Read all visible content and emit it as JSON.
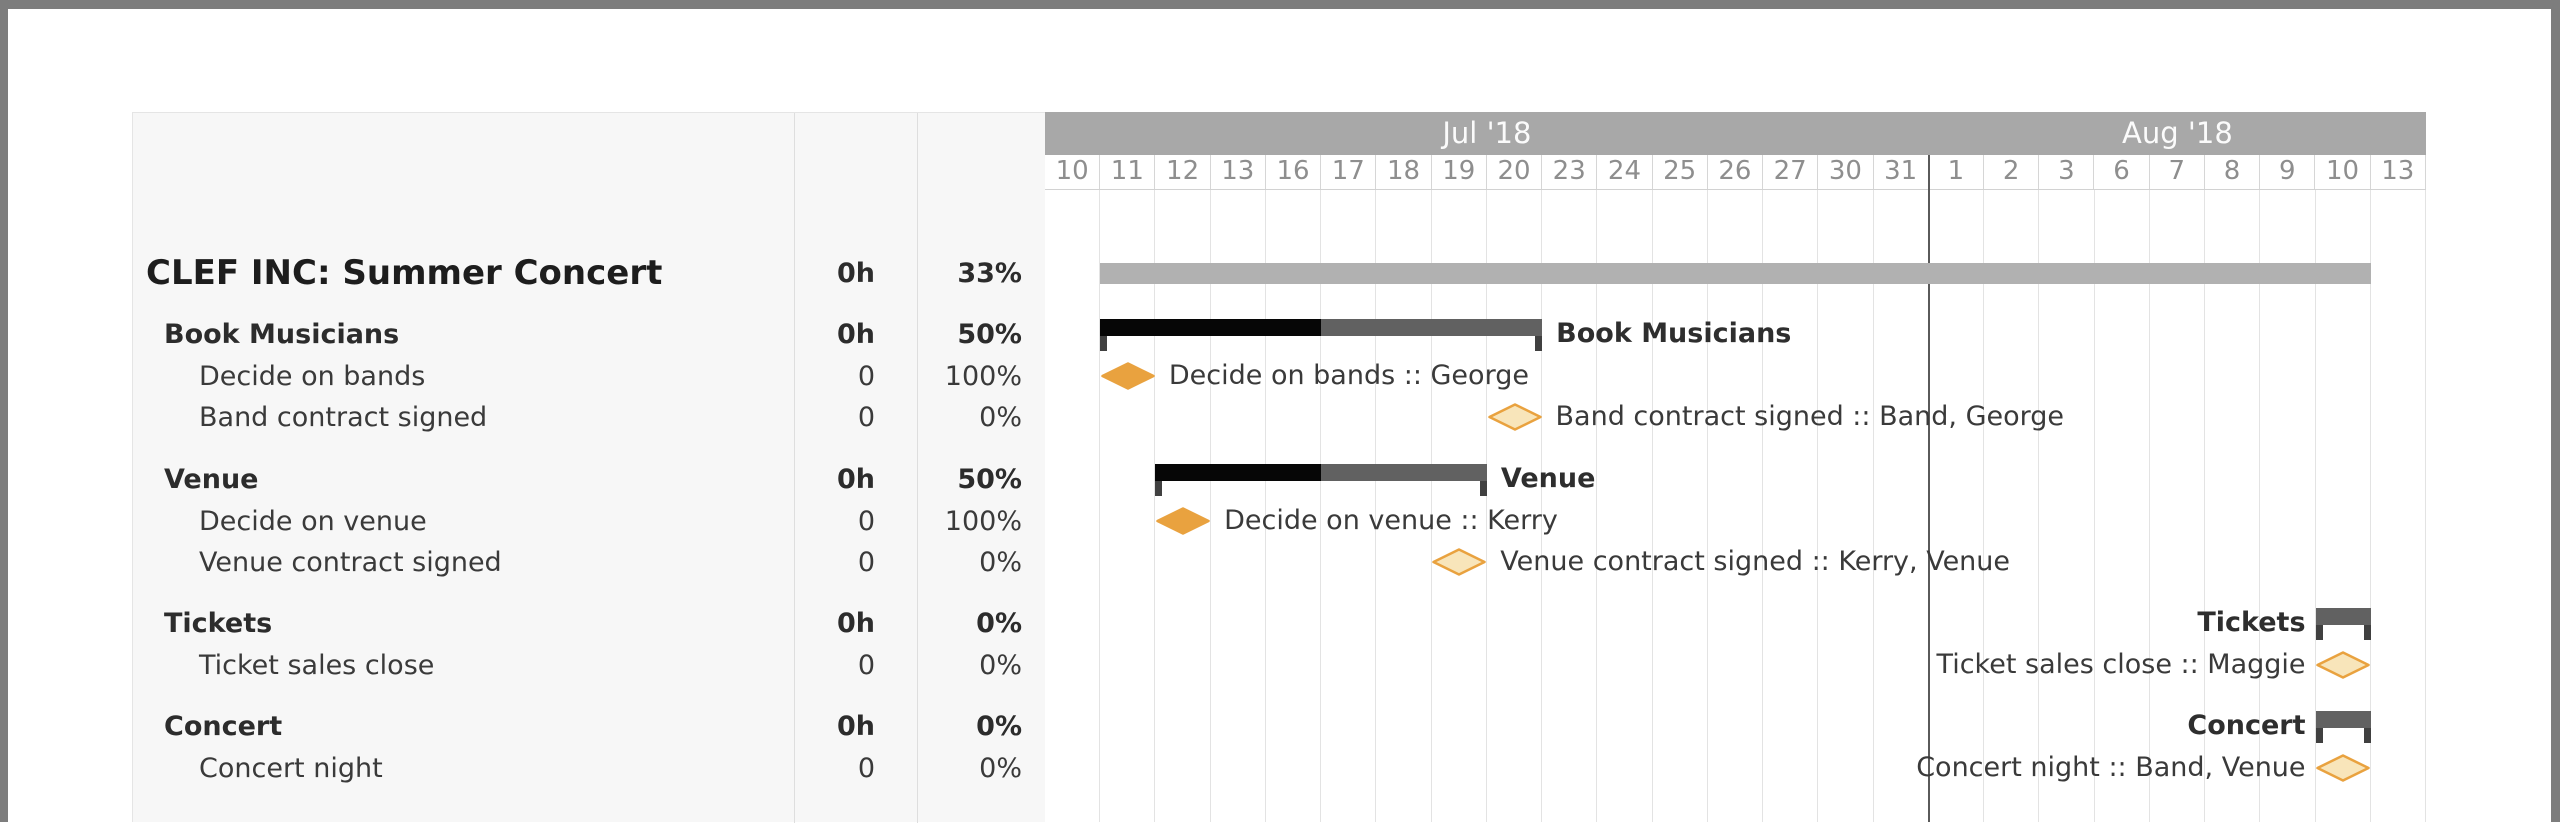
{
  "timeline": {
    "months": [
      {
        "label": "Jul '18",
        "days": 16
      },
      {
        "label": "Aug '18",
        "days": 9
      }
    ],
    "days": [
      "10",
      "11",
      "12",
      "13",
      "16",
      "17",
      "18",
      "19",
      "20",
      "23",
      "24",
      "25",
      "26",
      "27",
      "30",
      "31",
      "1",
      "2",
      "3",
      "6",
      "7",
      "8",
      "9",
      "10",
      "13"
    ]
  },
  "rows": [
    {
      "type": "project",
      "name": "CLEF INC: Summer Concert",
      "hours": "0h",
      "percent": "33%",
      "bar": {
        "kind": "project",
        "startCol": 1,
        "spanCols": 23,
        "start_date": "Jul 11",
        "end_date": "Aug 10"
      }
    },
    {
      "type": "group",
      "name": "Book Musicians",
      "hours": "0h",
      "percent": "50%",
      "bar": {
        "kind": "summary",
        "startCol": 1,
        "spanCols": 8,
        "progress": 0.5,
        "label": "Book Musicians",
        "labelSide": "right",
        "start_date": "Jul 11",
        "end_date": "Jul 20"
      }
    },
    {
      "type": "task",
      "name": "Decide on bands",
      "hours": "0",
      "percent": "100%",
      "bar": {
        "kind": "milestone",
        "col": 1,
        "filled": true,
        "label": "Decide on bands :: George",
        "labelSide": "right",
        "date": "Jul 11"
      }
    },
    {
      "type": "task",
      "name": "Band contract signed",
      "hours": "0",
      "percent": "0%",
      "bar": {
        "kind": "milestone",
        "col": 8,
        "filled": false,
        "label": "Band contract signed :: Band, George",
        "labelSide": "right",
        "date": "Jul 20"
      }
    },
    {
      "type": "group",
      "name": "Venue",
      "hours": "0h",
      "percent": "50%",
      "bar": {
        "kind": "summary",
        "startCol": 2,
        "spanCols": 6,
        "progress": 0.5,
        "label": "Venue",
        "labelSide": "right",
        "start_date": "Jul 12",
        "end_date": "Jul 19"
      }
    },
    {
      "type": "task",
      "name": "Decide on venue",
      "hours": "0",
      "percent": "100%",
      "bar": {
        "kind": "milestone",
        "col": 2,
        "filled": true,
        "label": "Decide on venue :: Kerry",
        "labelSide": "right",
        "date": "Jul 12"
      }
    },
    {
      "type": "task",
      "name": "Venue contract signed",
      "hours": "0",
      "percent": "0%",
      "bar": {
        "kind": "milestone",
        "col": 7,
        "filled": false,
        "label": "Venue contract signed :: Kerry, Venue",
        "labelSide": "right",
        "date": "Jul 19"
      }
    },
    {
      "type": "group",
      "name": "Tickets",
      "hours": "0h",
      "percent": "0%",
      "bar": {
        "kind": "summary",
        "startCol": 23,
        "spanCols": 1,
        "progress": 0,
        "label": "Tickets",
        "labelSide": "left",
        "start_date": "Aug 10",
        "end_date": "Aug 10"
      }
    },
    {
      "type": "task",
      "name": "Ticket sales close",
      "hours": "0",
      "percent": "0%",
      "bar": {
        "kind": "milestone",
        "col": 23,
        "filled": false,
        "label": "Ticket sales close :: Maggie",
        "labelSide": "left",
        "date": "Aug 10"
      }
    },
    {
      "type": "group",
      "name": "Concert",
      "hours": "0h",
      "percent": "0%",
      "bar": {
        "kind": "summary",
        "startCol": 23,
        "spanCols": 1,
        "progress": 0,
        "label": "Concert",
        "labelSide": "left",
        "start_date": "Aug 10",
        "end_date": "Aug 10"
      }
    },
    {
      "type": "task",
      "name": "Concert night",
      "hours": "0",
      "percent": "0%",
      "bar": {
        "kind": "milestone",
        "col": 23,
        "filled": false,
        "label": "Concert night :: Band, Venue",
        "labelSide": "left",
        "date": "Aug 10"
      }
    }
  ],
  "colors": {
    "frame": "#7d7d7d",
    "panel_bg": "#f7f7f7",
    "month_band": "#a8a8a8",
    "project_bar": "#b1b1b1",
    "summary_base": "#616161",
    "summary_progress": "#060606",
    "summary_leg": "#404040",
    "milestone_filled": "#e9a23f",
    "milestone_open_fill": "#f8e5ba",
    "milestone_stroke": "#e9a23f"
  }
}
